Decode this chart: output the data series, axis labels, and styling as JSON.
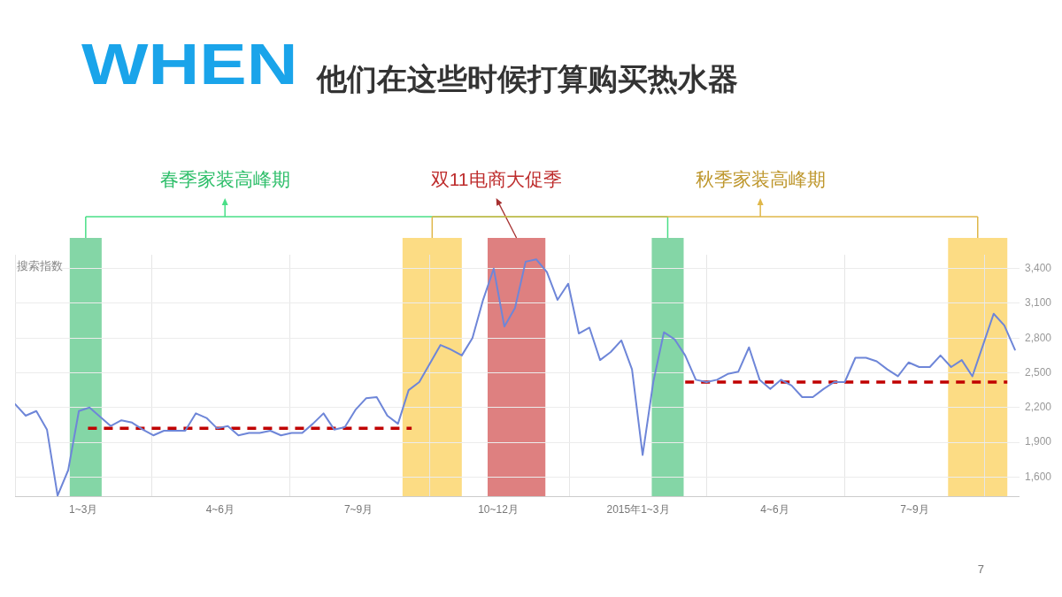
{
  "chart_data": {
    "type": "line",
    "title": "WHEN",
    "subtitle": "他们在这些时候打算购买热水器",
    "ylabel": "搜索指数",
    "annotations": [
      "春季家装高峰期",
      "双11电商大促季",
      "秋季家装高峰期",
      "7"
    ],
    "x": [
      "2014-01-01",
      "2014-01-08",
      "2014-01-15",
      "2014-01-22",
      "2014-01-29",
      "2014-02-05",
      "2014-02-12",
      "2014-02-19",
      "2014-02-26",
      "2014-03-05",
      "2014-03-12",
      "2014-03-19",
      "2014-03-26",
      "2014-04-02",
      "2014-04-09",
      "2014-04-16",
      "2014-04-23",
      "2014-04-30",
      "2014-05-07",
      "2014-05-14",
      "2014-05-21",
      "2014-05-28",
      "2014-06-04",
      "2014-06-11",
      "2014-06-18",
      "2014-06-25",
      "2014-07-02",
      "2014-07-09",
      "2014-07-16",
      "2014-07-23",
      "2014-07-30",
      "2014-08-06",
      "2014-08-13",
      "2014-08-20",
      "2014-08-27",
      "2014-09-03",
      "2014-09-10",
      "2014-09-17",
      "2014-09-24",
      "2014-10-01",
      "2014-10-08",
      "2014-10-15",
      "2014-10-22",
      "2014-10-29",
      "2014-11-05",
      "2014-11-12",
      "2014-11-19",
      "2014-11-26",
      "2014-12-03",
      "2014-12-10",
      "2014-12-17",
      "2014-12-24",
      "2014-12-31",
      "2015-01-07",
      "2015-01-14",
      "2015-01-21",
      "2015-01-28",
      "2015-02-04",
      "2015-02-11",
      "2015-02-18",
      "2015-02-25",
      "2015-03-04",
      "2015-03-11",
      "2015-03-18",
      "2015-03-25",
      "2015-04-01",
      "2015-04-08",
      "2015-04-15",
      "2015-04-22",
      "2015-04-29",
      "2015-05-06",
      "2015-05-13",
      "2015-05-20",
      "2015-05-27",
      "2015-06-03",
      "2015-06-10",
      "2015-06-17",
      "2015-06-24",
      "2015-07-01",
      "2015-07-08",
      "2015-07-15",
      "2015-07-22",
      "2015-07-29",
      "2015-08-05",
      "2015-08-12",
      "2015-08-19",
      "2015-08-26",
      "2015-09-02",
      "2015-09-09",
      "2015-09-16",
      "2015-09-23",
      "2015-09-30",
      "2015-10-07",
      "2015-10-14",
      "2015-10-21"
    ],
    "series": [
      {
        "color": "#6e86d8",
        "values": [
          2230,
          2130,
          2170,
          2010,
          1440,
          1660,
          2170,
          2200,
          2120,
          2040,
          2090,
          2070,
          2010,
          1960,
          2000,
          2000,
          2000,
          2150,
          2110,
          2020,
          2040,
          1960,
          1980,
          1980,
          2000,
          1960,
          1980,
          1980,
          2060,
          2150,
          2010,
          2030,
          2180,
          2280,
          2290,
          2130,
          2060,
          2350,
          2420,
          2580,
          2740,
          2700,
          2650,
          2800,
          3130,
          3400,
          2900,
          3060,
          3460,
          3480,
          3370,
          3130,
          3270,
          2840,
          2890,
          2610,
          2680,
          2780,
          2530,
          1790,
          2420,
          2850,
          2790,
          2650,
          2440,
          2420,
          2440,
          2490,
          2510,
          2720,
          2440,
          2360,
          2440,
          2390,
          2290,
          2290,
          2360,
          2420,
          2420,
          2630,
          2630,
          2600,
          2530,
          2470,
          2590,
          2550,
          2550,
          2650,
          2550,
          2610,
          2470,
          2740,
          3010,
          2910,
          2700
        ]
      },
      {
        "type": "line",
        "x": [
          "2014-02-18",
          "2014-09-19"
        ],
        "values": [
          2020,
          2020
        ],
        "color": "#c00000",
        "line_style": "dashed"
      },
      {
        "type": "line",
        "x": [
          "2015-03-18",
          "2015-10-16"
        ],
        "values": [
          2420,
          2420
        ],
        "color": "#c00000",
        "line_style": "dashed"
      }
    ],
    "xlim": [
      "2014-01-01",
      "2015-10-24"
    ],
    "xticks": [
      {
        "value": "2014-01-01",
        "label": null
      },
      {
        "value": "2014-02-15",
        "label": "1~3月"
      },
      {
        "value": "2014-04-01",
        "label": null
      },
      {
        "value": "2014-05-16",
        "label": "4~6月"
      },
      {
        "value": "2014-07-01",
        "label": null
      },
      {
        "value": "2014-08-15",
        "label": "7~9月"
      },
      {
        "value": "2014-10-01",
        "label": null
      },
      {
        "value": "2014-11-15",
        "label": "10~12月"
      },
      {
        "value": "2015-01-01",
        "label": null
      },
      {
        "value": "2015-02-15",
        "label": "2015年1~3月"
      },
      {
        "value": "2015-04-01",
        "label": null
      },
      {
        "value": "2015-05-16",
        "label": "4~6月"
      },
      {
        "value": "2015-07-01",
        "label": null
      },
      {
        "value": "2015-08-16",
        "label": "7~9月"
      },
      {
        "value": "2015-10-01",
        "label": null
      }
    ],
    "ylim": [
      1430,
      3520
    ],
    "yticks": [
      {
        "value": 1600,
        "label": "1,600"
      },
      {
        "value": 1900,
        "label": "1,900"
      },
      {
        "value": 2200,
        "label": "2,200"
      },
      {
        "value": 2500,
        "label": "2,500"
      },
      {
        "value": 2800,
        "label": "2,800"
      },
      {
        "value": 3100,
        "label": "3,100"
      },
      {
        "value": 3400,
        "label": "3,400"
      }
    ],
    "bands": [
      {
        "axis": "x",
        "from": "2014-02-06",
        "to": "2014-02-27",
        "color": "#84d6a6"
      },
      {
        "axis": "x",
        "from": "2014-11-08",
        "to": "2014-12-16",
        "color": "#de8080"
      },
      {
        "axis": "x",
        "from": "2014-09-13",
        "to": "2014-10-22",
        "color": "#fcdc84"
      },
      {
        "axis": "x",
        "from": "2015-02-24",
        "to": "2015-03-17",
        "color": "#84d6a6"
      },
      {
        "axis": "x",
        "from": "2015-09-07",
        "to": "2015-10-16",
        "color": "#fcdc84"
      }
    ],
    "grid": true,
    "legend": false,
    "marker": "none"
  }
}
